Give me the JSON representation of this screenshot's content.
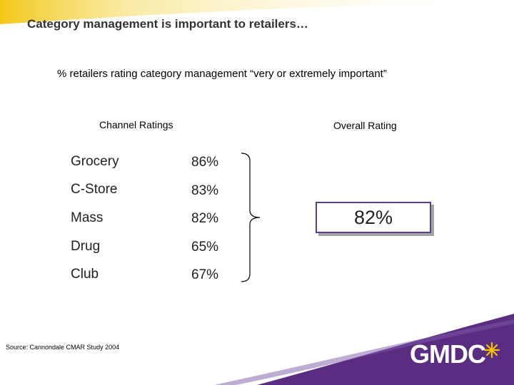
{
  "title": "Category management is important to retailers…",
  "subtitle": "% retailers rating category management “very or extremely important”",
  "channel_header": "Channel Ratings",
  "overall_header": "Overall Rating",
  "ratings": [
    {
      "channel": "Grocery",
      "value": "86%"
    },
    {
      "channel": "C-Store",
      "value": "83%"
    },
    {
      "channel": "Mass",
      "value": "82%"
    },
    {
      "channel": "Drug",
      "value": "65%"
    },
    {
      "channel": "Club",
      "value": "67%"
    }
  ],
  "overall_value": "82%",
  "source": "Source: Cannondale CMAR Study 2004",
  "logo": "GMDC",
  "colors": {
    "brand_purple": "#5a2d82",
    "accent_yellow": "#f2c100",
    "box_border": "#5a3e8f"
  }
}
